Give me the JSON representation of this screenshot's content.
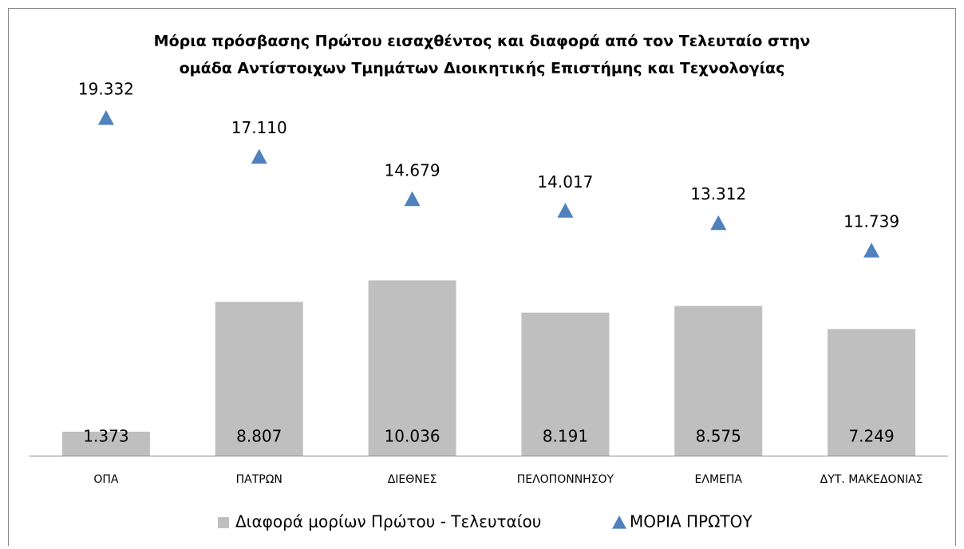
{
  "chart_data": {
    "type": "bar",
    "title": [
      "Μόρια πρόσβασης Πρώτου εισαχθέντος και διαφορά από τον Τελευταίο στην",
      "ομάδα Αντίστοιχων Τμημάτων Διοικητικής Επιστήμης και Τεχνολογίας"
    ],
    "categories": [
      "ΟΠΑ",
      "ΠΑΤΡΩΝ",
      "ΔΙΕΘΝΕΣ",
      "ΠΕΛΟΠΟΝΝΗΣΟΥ",
      "ΕΛΜΕΠΑ",
      "ΔΥΤ. ΜΑΚΕΔΟΝΙΑΣ"
    ],
    "series": [
      {
        "name": "Διαφορά μορίων Πρώτου - Τελευταίου",
        "type": "bar",
        "color": "#bfbfbf",
        "values": [
          1373,
          8807,
          10036,
          8191,
          8575,
          7249
        ],
        "value_labels": [
          "1.373",
          "8.807",
          "10.036",
          "8.191",
          "8.575",
          "7.249"
        ]
      },
      {
        "name": "ΜΟΡΙΑ ΠΡΩΤΟΥ",
        "type": "scatter",
        "color": "#4f81bd",
        "values": [
          19332,
          17110,
          14679,
          14017,
          13312,
          11739
        ],
        "value_labels": [
          "19.332",
          "17.110",
          "14.679",
          "14.017",
          "13.312",
          "11.739"
        ]
      }
    ],
    "legend": "bottom"
  }
}
